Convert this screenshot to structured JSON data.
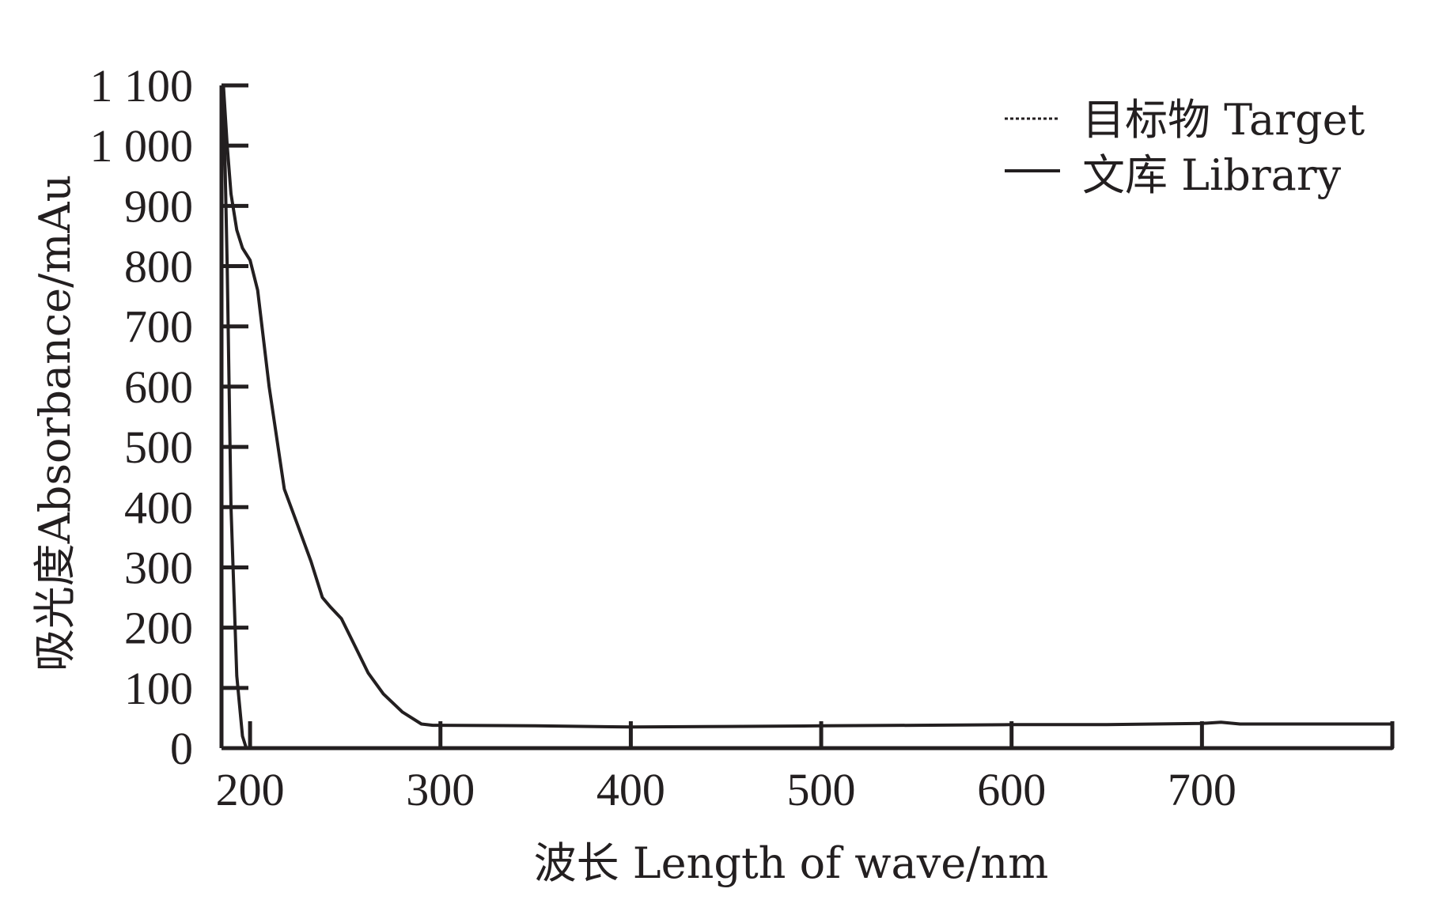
{
  "chart_data": {
    "type": "line",
    "xlabel": "波长 Length of wave/nm",
    "ylabel": "吸光度Absorbance/mAu",
    "xlim": [
      185,
      800
    ],
    "ylim": [
      0,
      1100
    ],
    "x_ticks": [
      200,
      300,
      400,
      500,
      600,
      700
    ],
    "x_tick_labels": [
      "200",
      "300",
      "400",
      "500",
      "600",
      "700"
    ],
    "y_ticks": [
      0,
      100,
      200,
      300,
      400,
      500,
      600,
      700,
      800,
      900,
      1000,
      1100
    ],
    "y_tick_labels": [
      "0",
      "100",
      "200",
      "300",
      "400",
      "500",
      "600",
      "700",
      "800",
      "900",
      "1 000",
      "1 100"
    ],
    "legend": {
      "position": "top-right",
      "entries": [
        {
          "label": "目标物 Target",
          "style": "dotted"
        },
        {
          "label": "文库 Library",
          "style": "solid"
        }
      ]
    },
    "series": [
      {
        "name": "目标物 Target",
        "style": "dotted",
        "x": [
          186,
          188,
          190,
          193,
          196,
          200,
          204,
          210,
          218,
          225,
          232,
          238,
          242,
          248,
          255,
          262,
          270,
          280,
          290,
          296,
          300,
          350,
          400,
          450,
          500,
          550,
          600,
          650,
          700,
          710,
          720,
          750,
          800
        ],
        "y": [
          1100,
          1000,
          920,
          860,
          830,
          810,
          760,
          600,
          430,
          370,
          310,
          250,
          235,
          215,
          170,
          125,
          90,
          60,
          40,
          38,
          38,
          37,
          35,
          36,
          37,
          38,
          39,
          39,
          41,
          43,
          40,
          40,
          40
        ]
      },
      {
        "name": "文库 Library",
        "style": "solid",
        "x": [
          186,
          188,
          190,
          193,
          196,
          200,
          204,
          210,
          218,
          225,
          232,
          238,
          242,
          248,
          255,
          262,
          270,
          280,
          290,
          296,
          300,
          350,
          400,
          450,
          500,
          550,
          600,
          650,
          700,
          710,
          720,
          750,
          800
        ],
        "y": [
          1100,
          1000,
          920,
          860,
          830,
          810,
          760,
          600,
          430,
          370,
          310,
          250,
          235,
          215,
          170,
          125,
          90,
          60,
          40,
          38,
          38,
          37,
          35,
          36,
          37,
          38,
          39,
          39,
          41,
          43,
          40,
          40,
          40
        ]
      },
      {
        "name": "",
        "style": "solid",
        "x": [
          186,
          188,
          190,
          193,
          196,
          198,
          200,
          210,
          300,
          400,
          500,
          600,
          700,
          800
        ],
        "y": [
          1100,
          800,
          400,
          120,
          20,
          0,
          0,
          0,
          0,
          0,
          0,
          0,
          0,
          0
        ]
      }
    ]
  }
}
